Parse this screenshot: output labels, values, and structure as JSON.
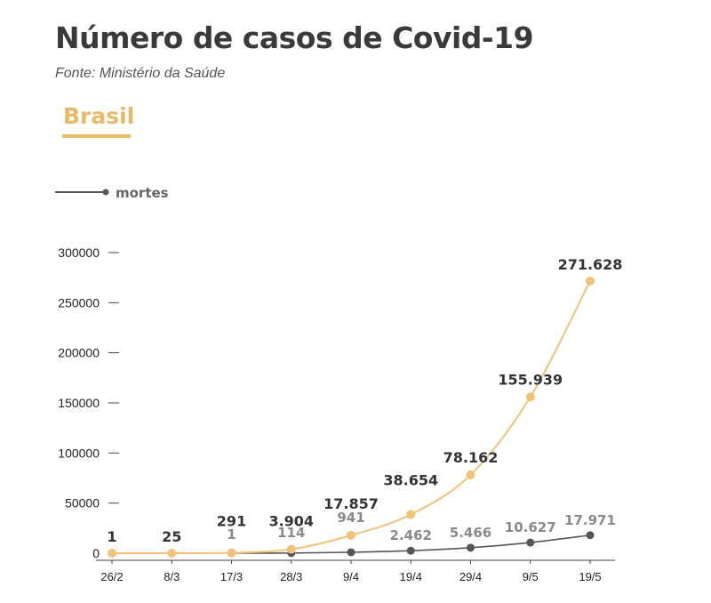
{
  "header": {
    "title": "Número de casos de Covid-19",
    "source": "Fonte:  Ministério da Saúde",
    "tab_label": "Brasil"
  },
  "colors": {
    "cases": "#f0c27a",
    "deaths": "#555555",
    "accent": "#e8b968",
    "text": "#3a3a3a"
  },
  "chart_data": {
    "type": "line",
    "categories": [
      "26/2",
      "8/3",
      "17/3",
      "28/3",
      "9/4",
      "19/4",
      "29/4",
      "9/5",
      "19/5"
    ],
    "ylim": [
      0,
      300000
    ],
    "yticks": [
      0,
      50000,
      100000,
      150000,
      200000,
      250000,
      300000
    ],
    "ytick_labels": [
      "0",
      "50000",
      "100000",
      "150000",
      "200000",
      "250000",
      "300000"
    ],
    "legend": {
      "label": "mortes",
      "placement": "top-left"
    },
    "grid": false,
    "series": [
      {
        "key": "cases",
        "values": [
          1,
          25,
          291,
          3904,
          17857,
          38654,
          78162,
          155939,
          271628
        ],
        "labels": [
          "1",
          "25",
          "291",
          "3.904",
          "17.857",
          "38.654",
          "78.162",
          "155.939",
          "271.628"
        ]
      },
      {
        "key": "deaths",
        "name": "mortes",
        "values": [
          0,
          0,
          1,
          114,
          941,
          2462,
          5466,
          10627,
          17971
        ],
        "labels": [
          "",
          "",
          "1",
          "114",
          "941",
          "2.462",
          "5.466",
          "10.627",
          "17.971"
        ]
      }
    ]
  }
}
